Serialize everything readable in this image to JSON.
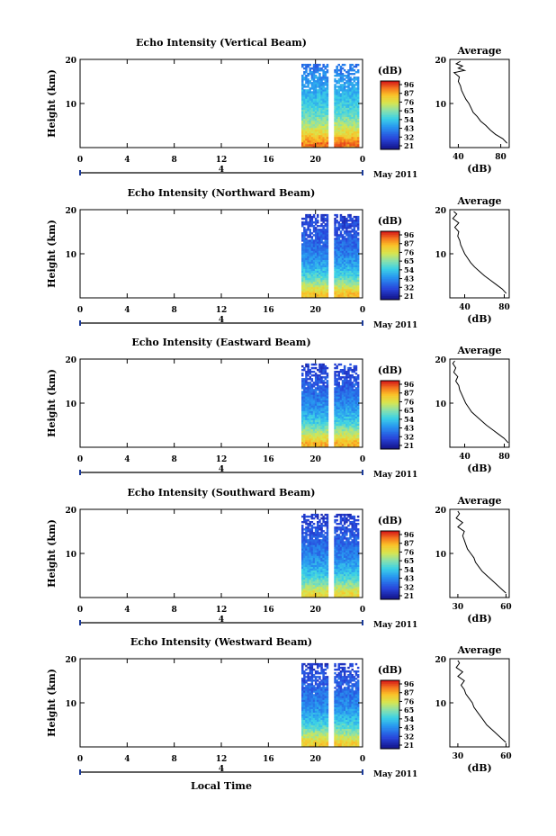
{
  "figure": {
    "x_axis_label": "Local Time",
    "date_label": "May 2011",
    "day_marker": "4",
    "colorbar_unit": "(dB)",
    "colorbar_ticks": [
      "96",
      "87",
      "76",
      "65",
      "54",
      "43",
      "32",
      "21"
    ],
    "average_title": "Average",
    "average_xlabel": "(dB)"
  },
  "chart_data": [
    {
      "type": "heatmap",
      "title": "Echo Intensity (Vertical Beam)",
      "ylabel": "Height (km)",
      "x_ticks": [
        "0",
        "4",
        "8",
        "12",
        "16",
        "20",
        "0"
      ],
      "y_ticks": [
        "20",
        "10"
      ],
      "xlim": [
        0,
        24
      ],
      "ylim": [
        0,
        20
      ],
      "data_start_hour": 18.8,
      "gap_hour": 21.3,
      "top_km": 19,
      "intensity_by_height_km": {
        "1": 88,
        "3": 78,
        "5": 68,
        "8": 58,
        "12": 50,
        "16": 44,
        "19": 38
      },
      "colorbar": {
        "unit": "(dB)",
        "ticks": [
          96,
          87,
          76,
          65,
          54,
          43,
          32,
          21
        ]
      },
      "average": {
        "title": "Average",
        "xlabel": "(dB)",
        "x_ticks": [
          "40",
          "80"
        ],
        "xlim": [
          32,
          88
        ],
        "y_ticks": [
          "20",
          "10"
        ],
        "ylim": [
          0,
          20
        ],
        "profile": [
          [
            86,
            1
          ],
          [
            82,
            2
          ],
          [
            75,
            3
          ],
          [
            70,
            4
          ],
          [
            66,
            5
          ],
          [
            61,
            6
          ],
          [
            58,
            7
          ],
          [
            54,
            8
          ],
          [
            52,
            9
          ],
          [
            50,
            10
          ],
          [
            47,
            11
          ],
          [
            45,
            12
          ],
          [
            43,
            13
          ],
          [
            42,
            14
          ],
          [
            40,
            15
          ],
          [
            41,
            16
          ],
          [
            36,
            17
          ],
          [
            46,
            17.5
          ],
          [
            40,
            18
          ],
          [
            44,
            18.5
          ],
          [
            38,
            19
          ],
          [
            42,
            19.6
          ]
        ]
      }
    },
    {
      "type": "heatmap",
      "title": "Echo Intensity (Northward Beam)",
      "ylabel": "Height (km)",
      "x_ticks": [
        "0",
        "4",
        "8",
        "12",
        "16",
        "20",
        "0"
      ],
      "y_ticks": [
        "20",
        "10"
      ],
      "xlim": [
        0,
        24
      ],
      "ylim": [
        0,
        20
      ],
      "data_start_hour": 18.8,
      "gap_hour": 21.3,
      "top_km": 19,
      "intensity_by_height_km": {
        "1": 80,
        "3": 68,
        "5": 56,
        "8": 46,
        "12": 38,
        "16": 33,
        "19": 30
      },
      "colorbar": {
        "unit": "(dB)",
        "ticks": [
          96,
          87,
          76,
          65,
          54,
          43,
          32,
          21
        ]
      },
      "average": {
        "title": "Average",
        "xlabel": "(dB)",
        "x_ticks": [
          "40",
          "80"
        ],
        "xlim": [
          25,
          85
        ],
        "y_ticks": [
          "20",
          "10"
        ],
        "ylim": [
          0,
          20
        ],
        "profile": [
          [
            82,
            1
          ],
          [
            78,
            2
          ],
          [
            72,
            3
          ],
          [
            66,
            4
          ],
          [
            60,
            5
          ],
          [
            55,
            6
          ],
          [
            50,
            7
          ],
          [
            46,
            8
          ],
          [
            43,
            9
          ],
          [
            40,
            10
          ],
          [
            38,
            11
          ],
          [
            36,
            12
          ],
          [
            35,
            13
          ],
          [
            33,
            14
          ],
          [
            34,
            15
          ],
          [
            30,
            16
          ],
          [
            34,
            17
          ],
          [
            28,
            18
          ],
          [
            32,
            19
          ],
          [
            29,
            19.6
          ]
        ]
      }
    },
    {
      "type": "heatmap",
      "title": "Echo Intensity (Eastward Beam)",
      "ylabel": "Height (km)",
      "x_ticks": [
        "0",
        "4",
        "8",
        "12",
        "16",
        "20",
        "0"
      ],
      "y_ticks": [
        "20",
        "10"
      ],
      "xlim": [
        0,
        24
      ],
      "ylim": [
        0,
        20
      ],
      "data_start_hour": 18.8,
      "gap_hour": 21.3,
      "top_km": 19,
      "intensity_by_height_km": {
        "1": 82,
        "3": 70,
        "5": 58,
        "8": 47,
        "12": 39,
        "16": 33,
        "19": 30
      },
      "colorbar": {
        "unit": "(dB)",
        "ticks": [
          96,
          87,
          76,
          65,
          54,
          43,
          32,
          21
        ]
      },
      "average": {
        "title": "Average",
        "xlabel": "(dB)",
        "x_ticks": [
          "40",
          "80"
        ],
        "xlim": [
          25,
          85
        ],
        "y_ticks": [
          "20",
          "10"
        ],
        "ylim": [
          0,
          20
        ],
        "profile": [
          [
            84,
            1
          ],
          [
            80,
            2
          ],
          [
            74,
            3
          ],
          [
            68,
            4
          ],
          [
            62,
            5
          ],
          [
            57,
            6
          ],
          [
            52,
            7
          ],
          [
            47,
            8
          ],
          [
            44,
            9
          ],
          [
            41,
            10
          ],
          [
            39,
            11
          ],
          [
            37,
            12
          ],
          [
            35,
            13
          ],
          [
            34,
            14
          ],
          [
            31,
            15
          ],
          [
            33,
            16
          ],
          [
            29,
            17
          ],
          [
            31,
            18
          ],
          [
            28,
            19
          ],
          [
            30,
            19.6
          ]
        ]
      }
    },
    {
      "type": "heatmap",
      "title": "Echo Intensity (Southward Beam)",
      "ylabel": "Height (km)",
      "x_ticks": [
        "0",
        "4",
        "8",
        "12",
        "16",
        "20",
        "0"
      ],
      "y_ticks": [
        "20",
        "10"
      ],
      "xlim": [
        0,
        24
      ],
      "ylim": [
        0,
        20
      ],
      "data_start_hour": 18.8,
      "gap_hour": 21.3,
      "top_km": 19,
      "intensity_by_height_km": {
        "1": 76,
        "3": 64,
        "5": 54,
        "8": 45,
        "12": 38,
        "16": 33,
        "19": 30
      },
      "colorbar": {
        "unit": "(dB)",
        "ticks": [
          96,
          87,
          76,
          65,
          54,
          43,
          32,
          21
        ]
      },
      "average": {
        "title": "Average",
        "xlabel": "(dB)",
        "x_ticks": [
          "30",
          "60"
        ],
        "xlim": [
          25,
          62
        ],
        "y_ticks": [
          "20",
          "10"
        ],
        "ylim": [
          0,
          20
        ],
        "profile": [
          [
            60,
            1
          ],
          [
            57,
            2
          ],
          [
            54,
            3
          ],
          [
            51,
            4
          ],
          [
            48,
            5
          ],
          [
            45,
            6
          ],
          [
            43,
            7
          ],
          [
            41,
            8
          ],
          [
            40,
            9
          ],
          [
            38,
            10
          ],
          [
            36,
            11
          ],
          [
            35,
            12
          ],
          [
            34,
            13
          ],
          [
            33,
            14
          ],
          [
            34,
            15
          ],
          [
            30,
            16
          ],
          [
            33,
            17
          ],
          [
            29,
            18
          ],
          [
            31,
            19
          ],
          [
            30,
            19.6
          ]
        ]
      }
    },
    {
      "type": "heatmap",
      "title": "Echo Intensity (Westward Beam)",
      "ylabel": "Height (km)",
      "x_ticks": [
        "0",
        "4",
        "8",
        "12",
        "16",
        "20",
        "0"
      ],
      "y_ticks": [
        "20",
        "10"
      ],
      "xlim": [
        0,
        24
      ],
      "ylim": [
        0,
        20
      ],
      "data_start_hour": 18.8,
      "gap_hour": 21.3,
      "top_km": 19,
      "intensity_by_height_km": {
        "1": 78,
        "3": 66,
        "5": 56,
        "8": 46,
        "12": 39,
        "16": 34,
        "19": 30
      },
      "colorbar": {
        "unit": "(dB)",
        "ticks": [
          96,
          87,
          76,
          65,
          54,
          43,
          32,
          21
        ]
      },
      "average": {
        "title": "Average",
        "xlabel": "(dB)",
        "x_ticks": [
          "30",
          "60"
        ],
        "xlim": [
          25,
          62
        ],
        "y_ticks": [
          "20",
          "10"
        ],
        "ylim": [
          0,
          20
        ],
        "profile": [
          [
            60,
            1
          ],
          [
            57,
            2
          ],
          [
            54,
            3
          ],
          [
            51,
            4
          ],
          [
            48,
            5
          ],
          [
            46,
            6
          ],
          [
            44,
            7
          ],
          [
            42,
            8
          ],
          [
            40,
            9
          ],
          [
            39,
            10
          ],
          [
            37,
            11
          ],
          [
            35,
            12
          ],
          [
            34,
            13
          ],
          [
            32,
            14
          ],
          [
            34,
            15
          ],
          [
            30,
            16
          ],
          [
            33,
            17
          ],
          [
            29,
            18
          ],
          [
            31,
            19
          ],
          [
            30,
            19.6
          ]
        ]
      }
    }
  ]
}
